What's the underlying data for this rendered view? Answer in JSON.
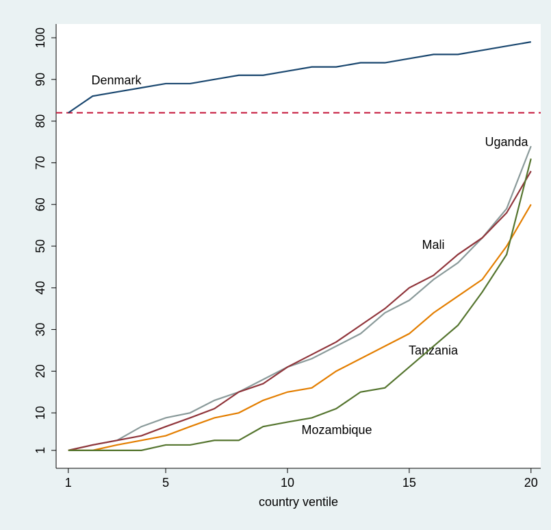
{
  "chart_data": {
    "type": "line",
    "xlabel": "country ventile",
    "x": [
      1,
      2,
      3,
      4,
      5,
      6,
      7,
      8,
      9,
      10,
      11,
      12,
      13,
      14,
      15,
      16,
      17,
      18,
      19,
      20
    ],
    "xlim": [
      0.5,
      20.4
    ],
    "xticks": [
      1,
      5,
      10,
      15,
      20
    ],
    "ylim": [
      -3.3,
      103.3
    ],
    "yticks": [
      1,
      10,
      20,
      30,
      40,
      50,
      60,
      70,
      80,
      90,
      100
    ],
    "reference_line": {
      "y": 82,
      "color": "#c4163a",
      "style": "dashed"
    },
    "series": [
      {
        "name": "Denmark",
        "color": "#1a476f",
        "values": [
          82,
          86,
          87,
          88,
          89,
          89,
          90,
          91,
          91,
          92,
          93,
          93,
          94,
          94,
          95,
          96,
          96,
          97,
          98,
          99
        ]
      },
      {
        "name": "Uganda",
        "color": "#8a9a9a",
        "values": [
          1,
          2.3,
          3.4,
          6.7,
          8.8,
          10,
          13,
          15,
          18,
          21,
          23,
          26,
          29,
          34,
          37,
          42,
          46,
          52,
          59,
          74
        ]
      },
      {
        "name": "Mali",
        "color": "#90353b",
        "values": [
          1,
          2.3,
          3.4,
          4.5,
          6.7,
          8.8,
          11,
          15,
          17,
          21,
          24,
          27,
          31,
          35,
          40,
          43,
          48,
          52,
          58,
          68
        ]
      },
      {
        "name": "Tanzania",
        "color": "#e37e00",
        "values": [
          1,
          1,
          2.3,
          3.4,
          4.5,
          6.7,
          8.8,
          10,
          13,
          15,
          16,
          20,
          23,
          26,
          29,
          34,
          38,
          42,
          50,
          60
        ]
      },
      {
        "name": "Mozambique",
        "color": "#55752f",
        "values": [
          1,
          1,
          1,
          1,
          2.3,
          2.3,
          3.4,
          3.4,
          6.7,
          7.8,
          8.8,
          11,
          15,
          16,
          21,
          26,
          31,
          39,
          48,
          71
        ]
      }
    ]
  }
}
